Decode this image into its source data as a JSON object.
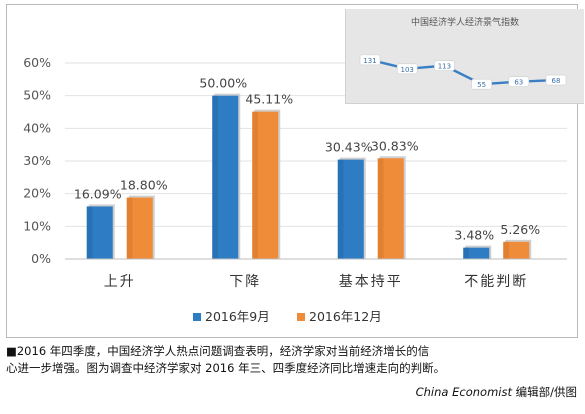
{
  "chart_data": [
    {
      "type": "bar",
      "categories": [
        "上升",
        "下降",
        "基本持平",
        "不能判断"
      ],
      "series": [
        {
          "name": "2016年9月",
          "values": [
            16.09,
            50.0,
            30.43,
            3.48
          ],
          "labels": [
            "16.09%",
            "50.00%",
            "30.43%",
            "3.48%"
          ],
          "color": "#2e7cc4"
        },
        {
          "name": "2016年12月",
          "values": [
            18.8,
            45.11,
            30.83,
            5.26
          ],
          "labels": [
            "18.80%",
            "45.11%",
            "30.83%",
            "5.26%"
          ],
          "color": "#ee8c3a"
        }
      ],
      "yticks": [
        "0%",
        "10%",
        "20%",
        "30%",
        "40%",
        "50%",
        "60%"
      ],
      "ylim": [
        0,
        60
      ],
      "grid": true,
      "legend_position": "bottom-center"
    },
    {
      "type": "line",
      "title": "中国经济学人经济景气指数",
      "values": [
        131,
        103,
        113,
        55,
        63,
        68
      ],
      "line_color": "#3a7fc4"
    }
  ],
  "caption": {
    "line1": "■2016 年四季度，中国经济学人热点问题调查表明，经济学家对当前经济增长的信",
    "line2": "心进一步增强。图为调查中经济学家对 2016 年三、四季度经济同比增速走向的判断。"
  },
  "credit": {
    "italic": "China  Economist",
    "rest": " 编辑部/供图"
  }
}
